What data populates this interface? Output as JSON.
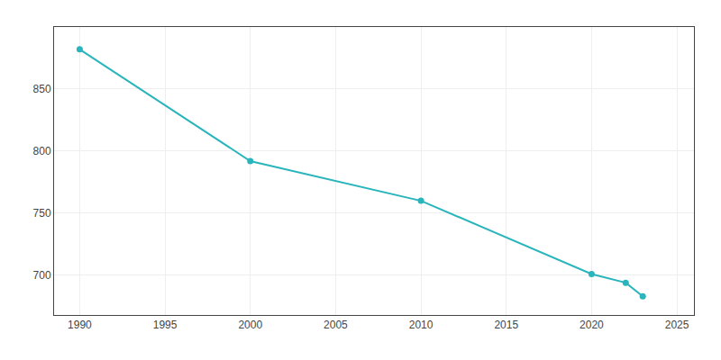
{
  "chart_data": {
    "type": "line",
    "x": [
      1990,
      2000,
      2010,
      2020,
      2022,
      2023
    ],
    "values": [
      882,
      792,
      760,
      701,
      694,
      683
    ],
    "color": "#2ab5bc",
    "marker": "circle",
    "xlim": [
      1988.5,
      2026
    ],
    "ylim": [
      668,
      900
    ],
    "xticks": [
      1990,
      1995,
      2000,
      2005,
      2010,
      2015,
      2020,
      2025
    ],
    "yticks": [
      700,
      750,
      800,
      850
    ],
    "grid": true
  }
}
